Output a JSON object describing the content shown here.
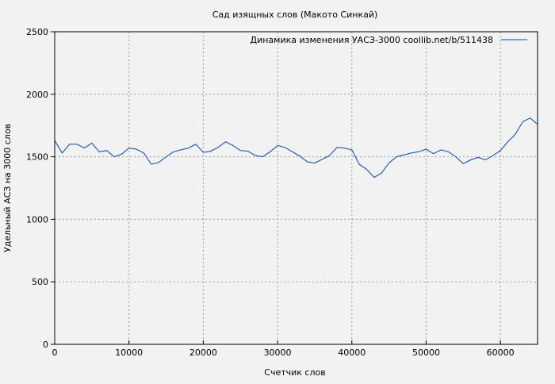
{
  "chart_data": {
    "type": "line",
    "title": "Сад изящных слов (Макото Синкай)",
    "xlabel": "Счетчик слов",
    "ylabel": "Удельный АСЗ на 3000 слов",
    "xlim": [
      0,
      65000
    ],
    "ylim": [
      0,
      2500
    ],
    "xticks": [
      0,
      10000,
      20000,
      30000,
      40000,
      50000,
      60000
    ],
    "yticks": [
      0,
      500,
      1000,
      1500,
      2000,
      2500
    ],
    "grid": true,
    "legend_placement": "top-right",
    "line_color": "#0044bb",
    "series": [
      {
        "name": "Динамика изменения УАСЗ-3000  coollib.net/b/511438",
        "x": [
          0,
          1000,
          2000,
          3000,
          4000,
          5000,
          6000,
          7000,
          8000,
          9000,
          10000,
          11000,
          12000,
          13000,
          14000,
          15000,
          16000,
          17000,
          18000,
          19000,
          20000,
          21000,
          22000,
          23000,
          24000,
          25000,
          26000,
          27000,
          28000,
          29000,
          30000,
          31000,
          32000,
          33000,
          34000,
          35000,
          36000,
          37000,
          38000,
          39000,
          40000,
          41000,
          42000,
          43000,
          44000,
          45000,
          46000,
          47000,
          48000,
          49000,
          50000,
          51000,
          52000,
          53000,
          54000,
          55000,
          56000,
          57000,
          58000,
          59000,
          60000,
          61000,
          62000,
          63000,
          64000,
          65000
        ],
        "values": [
          1630,
          1530,
          1600,
          1600,
          1570,
          1610,
          1540,
          1550,
          1500,
          1520,
          1570,
          1560,
          1530,
          1440,
          1455,
          1500,
          1540,
          1555,
          1570,
          1600,
          1535,
          1545,
          1575,
          1620,
          1590,
          1550,
          1545,
          1510,
          1500,
          1540,
          1590,
          1575,
          1540,
          1505,
          1460,
          1450,
          1480,
          1510,
          1575,
          1570,
          1555,
          1440,
          1400,
          1335,
          1370,
          1450,
          1500,
          1515,
          1530,
          1540,
          1560,
          1525,
          1555,
          1540,
          1500,
          1445,
          1475,
          1495,
          1475,
          1510,
          1550,
          1620,
          1680,
          1780,
          1810,
          1760
        ]
      }
    ]
  }
}
